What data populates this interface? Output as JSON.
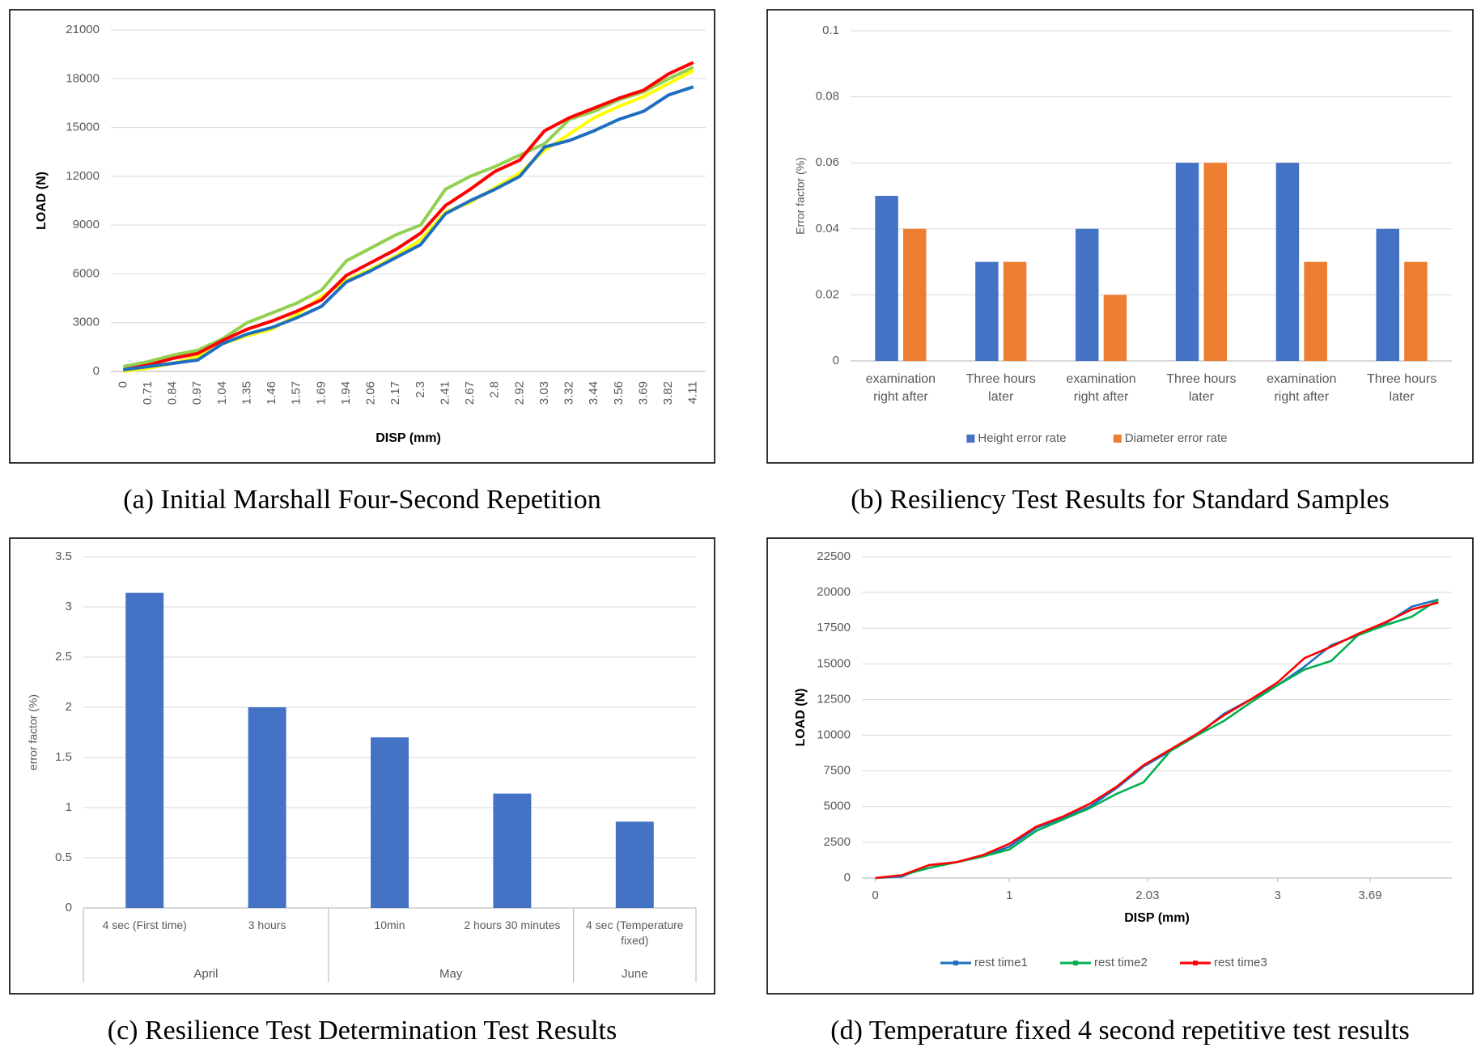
{
  "chart_data": [
    {
      "type": "line",
      "caption": "(a) Initial Marshall Four-Second Repetition",
      "x_label": "DISP (mm)",
      "y_label": "LOAD (N)",
      "categories": [
        "0",
        "0.71",
        "0.84",
        "0.97",
        "1.04",
        "1.35",
        "1.46",
        "1.57",
        "1.69",
        "1.94",
        "2.06",
        "2.17",
        "2.3",
        "2.41",
        "2.67",
        "2.8",
        "2.92",
        "3.03",
        "3.32",
        "3.44",
        "3.56",
        "3.69",
        "3.82",
        "4.11"
      ],
      "series": [
        {
          "color": "#92d050",
          "values": [
            300,
            600,
            1000,
            1300,
            2000,
            3000,
            3600,
            4200,
            5000,
            6800,
            7600,
            8400,
            9000,
            11200,
            12000,
            12600,
            13300,
            14000,
            15500,
            16000,
            16700,
            17200,
            18000,
            18700
          ]
        },
        {
          "color": "#ffff00",
          "values": [
            0,
            200,
            500,
            900,
            1700,
            2200,
            2600,
            3500,
            4600,
            5600,
            6300,
            7100,
            8100,
            9800,
            10400,
            11300,
            12200,
            13600,
            14600,
            15600,
            16300,
            16900,
            17700,
            18500
          ]
        },
        {
          "color": "#ff0000",
          "values": [
            100,
            400,
            800,
            1100,
            1900,
            2600,
            3100,
            3700,
            4400,
            5900,
            6700,
            7500,
            8500,
            10200,
            11200,
            12300,
            13000,
            14800,
            15600,
            16200,
            16800,
            17300,
            18300,
            19000
          ]
        },
        {
          "color": "#1f6fc0",
          "values": [
            100,
            300,
            500,
            700,
            1700,
            2300,
            2700,
            3300,
            4000,
            5500,
            6200,
            7000,
            7800,
            9700,
            10500,
            11200,
            12000,
            13800,
            14200,
            14800,
            15500,
            16000,
            17000,
            17500
          ]
        }
      ],
      "ylim": [
        0,
        21000
      ],
      "yticks": [
        0,
        3000,
        6000,
        9000,
        12000,
        15000,
        18000,
        21000
      ],
      "grid": true
    },
    {
      "type": "bar",
      "caption": "(b) Resiliency Test Results for Standard Samples",
      "y_label": "Error factor (%)",
      "categories": [
        "examination right after",
        "Three hours later",
        "examination right after",
        "Three hours later",
        "examination right after",
        "Three hours later"
      ],
      "series": [
        {
          "name": "Height error rate",
          "color": "#4472c4",
          "values": [
            0.05,
            0.03,
            0.04,
            0.06,
            0.06,
            0.04
          ]
        },
        {
          "name": "Diameter error rate",
          "color": "#ed7d31",
          "values": [
            0.04,
            0.03,
            0.02,
            0.06,
            0.03,
            0.03
          ]
        }
      ],
      "ylim": [
        0,
        0.1
      ],
      "yticks": [
        0,
        0.02,
        0.04,
        0.06,
        0.08,
        0.1
      ],
      "grid": true,
      "legend": "bottom"
    },
    {
      "type": "bar",
      "caption": "(c) Resilience Test Determination Test Results",
      "y_label": "error factor (%)",
      "categories": [
        "4 sec (First time)",
        "3 hours",
        "10min",
        "2 hours 30 minutes",
        "4 sec (Temperature fixed)"
      ],
      "groups": [
        {
          "label": "April",
          "count": 2
        },
        {
          "label": "May",
          "count": 2
        },
        {
          "label": "June",
          "count": 1
        }
      ],
      "values": [
        3.14,
        2.0,
        1.7,
        1.14,
        0.86
      ],
      "color": "#4472c4",
      "ylim": [
        0,
        3.5
      ],
      "yticks": [
        0,
        0.5,
        1,
        1.5,
        2,
        2.5,
        3,
        3.5
      ],
      "grid": true
    },
    {
      "type": "line",
      "caption": "(d) Temperature fixed 4 second repetitive test results",
      "x_label": "DISP (mm)",
      "y_label": "LOAD (N)",
      "x": [
        0,
        0.2,
        0.4,
        0.6,
        0.8,
        1.0,
        1.2,
        1.4,
        1.6,
        1.8,
        2.0,
        2.2,
        2.4,
        2.6,
        2.8,
        3.0,
        3.2,
        3.4,
        3.6,
        3.8,
        4.0,
        4.2
      ],
      "series": [
        {
          "name": "rest time1",
          "color": "#1f6fc0",
          "values": [
            0,
            100,
            900,
            1100,
            1500,
            2200,
            3500,
            4200,
            5000,
            6300,
            7800,
            8900,
            10000,
            11500,
            12500,
            13500,
            14800,
            16300,
            17000,
            17800,
            19000,
            19500
          ]
        },
        {
          "name": "rest time2",
          "color": "#00b050",
          "values": [
            0,
            200,
            700,
            1100,
            1500,
            2000,
            3300,
            4100,
            4900,
            5900,
            6700,
            8900,
            10000,
            11000,
            12300,
            13500,
            14600,
            15200,
            17000,
            17700,
            18300,
            19500
          ]
        },
        {
          "name": "rest time3",
          "color": "#ff0000",
          "values": [
            0,
            200,
            900,
            1100,
            1600,
            2400,
            3600,
            4300,
            5200,
            6400,
            7900,
            9000,
            10100,
            11400,
            12500,
            13700,
            15400,
            16200,
            17100,
            17900,
            18800,
            19300
          ]
        }
      ],
      "xlim": [
        -0.1,
        4.3
      ],
      "xticks": [
        0,
        1,
        2.03,
        3,
        3.69
      ],
      "ylim": [
        0,
        22500
      ],
      "yticks": [
        0,
        2500,
        5000,
        7500,
        10000,
        12500,
        15000,
        17500,
        20000,
        22500
      ],
      "grid": true,
      "legend": "bottom"
    }
  ]
}
